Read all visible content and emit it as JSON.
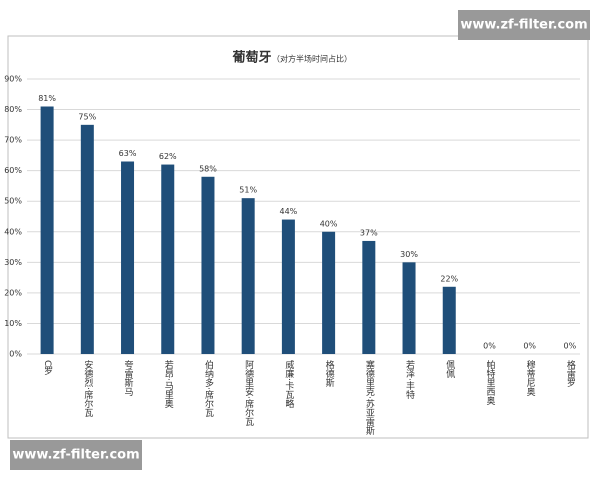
{
  "chart_data": {
    "type": "bar",
    "title": "葡萄牙",
    "subtitle": "（对方半场时间占比）",
    "categories": [
      "C罗",
      "安德烈·席尔瓦",
      "夸雷斯马",
      "若昂·马里奥",
      "伯纳多·席尔瓦",
      "阿德里安·席尔瓦",
      "威廉·卡瓦略",
      "格德斯",
      "塞德里克·苏亚雷斯",
      "若泽·丰特",
      "佩佩",
      "帕特里西奥",
      "穆蒂尼奥",
      "格雷罗"
    ],
    "values": [
      81,
      75,
      63,
      62,
      58,
      51,
      44,
      40,
      37,
      30,
      22,
      0,
      0,
      0
    ],
    "value_labels": [
      "81%",
      "75%",
      "63%",
      "62%",
      "58%",
      "51%",
      "44%",
      "40%",
      "37%",
      "30%",
      "22%",
      "0%",
      "0%",
      "0%"
    ],
    "color": "#1f4e79",
    "ylim": [
      0,
      90
    ],
    "yticks": [
      {
        "value": 0,
        "label": "0%"
      },
      {
        "value": 10,
        "label": "10%"
      },
      {
        "value": 20,
        "label": "20%"
      },
      {
        "value": 30,
        "label": "30%"
      },
      {
        "value": 40,
        "label": "40%"
      },
      {
        "value": 50,
        "label": "50%"
      },
      {
        "value": 60,
        "label": "60%"
      },
      {
        "value": 70,
        "label": "70%"
      },
      {
        "value": 80,
        "label": "80%"
      },
      {
        "value": 90,
        "label": "90%"
      }
    ],
    "grid": true
  },
  "watermarks": [
    "www.zf-filter.com",
    "www.zf-filter.com"
  ]
}
